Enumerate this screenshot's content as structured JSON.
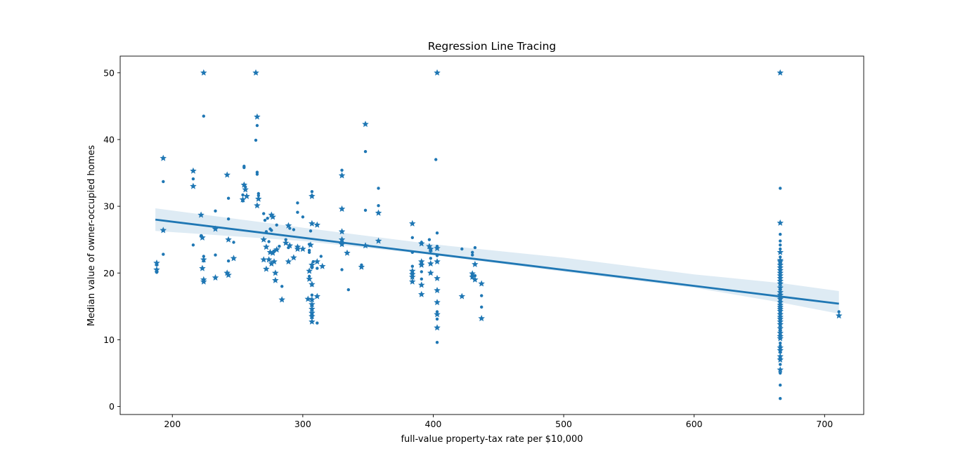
{
  "chart_data": {
    "type": "scatter",
    "title": "Regression Line Tracing",
    "xlabel": "full-value property-tax rate per $10,000",
    "ylabel": "Median value of owner-occupied homes",
    "xlim": [
      160,
      730
    ],
    "ylim": [
      -1.2,
      52.5
    ],
    "xticks": [
      200,
      300,
      400,
      500,
      600,
      700
    ],
    "yticks": [
      0,
      10,
      20,
      30,
      40,
      50
    ],
    "grid": false,
    "colors": {
      "points": "#1f77b4",
      "band": "#1f77b4",
      "line": "#1f77b4"
    },
    "regression": {
      "x": [
        187,
        711
      ],
      "y": [
        28.0,
        15.4
      ]
    },
    "confidence_band": {
      "x": [
        187,
        300,
        400,
        500,
        600,
        666,
        711
      ],
      "lower": [
        26.3,
        24.8,
        22.7,
        20.2,
        17.8,
        15.6,
        13.9
      ],
      "upper": [
        29.7,
        26.8,
        24.3,
        22.3,
        19.8,
        18.5,
        17.3
      ]
    },
    "series": [
      {
        "marker": "star",
        "points": [
          [
            188,
            21.5
          ],
          [
            188,
            20.5
          ],
          [
            193,
            37.2
          ],
          [
            193,
            26.4
          ],
          [
            216,
            35.3
          ],
          [
            216,
            33.0
          ],
          [
            222,
            28.7
          ],
          [
            223,
            25.3
          ],
          [
            223,
            20.7
          ],
          [
            224,
            22.0
          ],
          [
            224,
            19.0
          ],
          [
            224,
            18.7
          ],
          [
            224,
            50.0
          ],
          [
            233,
            26.6
          ],
          [
            233,
            19.3
          ],
          [
            242,
            34.7
          ],
          [
            242,
            20.0
          ],
          [
            243,
            25.0
          ],
          [
            243,
            19.7
          ],
          [
            247,
            22.2
          ],
          [
            254,
            31.0
          ],
          [
            255,
            33.2
          ],
          [
            256,
            32.5
          ],
          [
            257,
            31.5
          ],
          [
            264,
            50.0
          ],
          [
            265,
            43.4
          ],
          [
            265,
            30.1
          ],
          [
            266,
            31.1
          ],
          [
            270,
            25.0
          ],
          [
            270,
            22.0
          ],
          [
            272,
            23.9
          ],
          [
            272,
            20.6
          ],
          [
            274,
            22.0
          ],
          [
            275,
            23.1
          ],
          [
            276,
            28.7
          ],
          [
            276,
            21.4
          ],
          [
            277,
            28.4
          ],
          [
            277,
            23.0
          ],
          [
            278,
            21.7
          ],
          [
            279,
            18.9
          ],
          [
            279,
            20.0
          ],
          [
            280,
            23.5
          ],
          [
            284,
            16.0
          ],
          [
            287,
            24.5
          ],
          [
            289,
            27.1
          ],
          [
            289,
            21.7
          ],
          [
            290,
            24.1
          ],
          [
            293,
            22.3
          ],
          [
            296,
            23.9
          ],
          [
            296,
            23.6
          ],
          [
            300,
            23.6
          ],
          [
            304,
            16.1
          ],
          [
            305,
            20.3
          ],
          [
            305,
            19.1
          ],
          [
            306,
            24.2
          ],
          [
            307,
            21.2
          ],
          [
            307,
            15.3
          ],
          [
            307,
            14.6
          ],
          [
            307,
            14.0
          ],
          [
            307,
            13.5
          ],
          [
            307,
            12.7
          ],
          [
            307,
            18.3
          ],
          [
            307,
            16.0
          ],
          [
            307,
            27.4
          ],
          [
            307,
            31.5
          ],
          [
            311,
            27.2
          ],
          [
            311,
            16.5
          ],
          [
            311,
            21.7
          ],
          [
            315,
            21.0
          ],
          [
            330,
            34.6
          ],
          [
            330,
            29.6
          ],
          [
            330,
            26.2
          ],
          [
            330,
            25.0
          ],
          [
            330,
            24.3
          ],
          [
            334,
            23.0
          ],
          [
            345,
            20.9
          ],
          [
            348,
            42.3
          ],
          [
            348,
            24.1
          ],
          [
            358,
            24.8
          ],
          [
            358,
            29.0
          ],
          [
            384,
            27.4
          ],
          [
            384,
            20.3
          ],
          [
            384,
            19.8
          ],
          [
            384,
            19.4
          ],
          [
            384,
            18.7
          ],
          [
            391,
            24.4
          ],
          [
            391,
            21.7
          ],
          [
            391,
            21.2
          ],
          [
            391,
            18.2
          ],
          [
            391,
            16.8
          ],
          [
            397,
            24.0
          ],
          [
            398,
            23.6
          ],
          [
            398,
            21.4
          ],
          [
            398,
            20.0
          ],
          [
            403,
            50.0
          ],
          [
            403,
            23.7
          ],
          [
            403,
            21.7
          ],
          [
            403,
            19.2
          ],
          [
            403,
            17.4
          ],
          [
            403,
            15.6
          ],
          [
            403,
            13.8
          ],
          [
            403,
            11.8
          ],
          [
            422,
            16.5
          ],
          [
            430,
            19.9
          ],
          [
            430,
            19.4
          ],
          [
            432,
            21.3
          ],
          [
            432,
            19.0
          ],
          [
            437,
            18.4
          ],
          [
            437,
            13.2
          ],
          [
            666,
            50.0
          ],
          [
            666,
            27.5
          ],
          [
            666,
            23.1
          ],
          [
            666,
            21.9
          ],
          [
            666,
            21.7
          ],
          [
            666,
            21.2
          ],
          [
            666,
            20.8
          ],
          [
            666,
            20.4
          ],
          [
            666,
            20.0
          ],
          [
            666,
            19.6
          ],
          [
            666,
            19.2
          ],
          [
            666,
            18.8
          ],
          [
            666,
            18.4
          ],
          [
            666,
            17.8
          ],
          [
            666,
            17.1
          ],
          [
            666,
            16.7
          ],
          [
            666,
            16.4
          ],
          [
            666,
            16.1
          ],
          [
            666,
            15.6
          ],
          [
            666,
            15.2
          ],
          [
            666,
            14.9
          ],
          [
            666,
            14.6
          ],
          [
            666,
            14.3
          ],
          [
            666,
            13.8
          ],
          [
            666,
            13.4
          ],
          [
            666,
            13.1
          ],
          [
            666,
            12.7
          ],
          [
            666,
            12.3
          ],
          [
            666,
            11.7
          ],
          [
            666,
            11.0
          ],
          [
            666,
            10.5
          ],
          [
            666,
            10.2
          ],
          [
            666,
            8.8
          ],
          [
            666,
            8.4
          ],
          [
            666,
            7.5
          ],
          [
            666,
            7.0
          ],
          [
            666,
            5.5
          ],
          [
            711,
            13.6
          ]
        ]
      },
      {
        "marker": "dot",
        "points": [
          [
            188,
            21.2
          ],
          [
            188,
            20.1
          ],
          [
            193,
            33.7
          ],
          [
            193,
            22.8
          ],
          [
            216,
            34.1
          ],
          [
            216,
            24.2
          ],
          [
            222,
            25.6
          ],
          [
            224,
            43.5
          ],
          [
            224,
            22.5
          ],
          [
            224,
            21.8
          ],
          [
            233,
            29.3
          ],
          [
            233,
            22.7
          ],
          [
            243,
            31.2
          ],
          [
            243,
            28.1
          ],
          [
            243,
            21.8
          ],
          [
            247,
            24.6
          ],
          [
            254,
            31.7
          ],
          [
            254,
            30.8
          ],
          [
            255,
            36.0
          ],
          [
            255,
            35.8
          ],
          [
            256,
            32.9
          ],
          [
            264,
            39.9
          ],
          [
            265,
            42.1
          ],
          [
            265,
            35.1
          ],
          [
            265,
            34.8
          ],
          [
            266,
            31.9
          ],
          [
            266,
            31.6
          ],
          [
            270,
            28.9
          ],
          [
            271,
            27.9
          ],
          [
            272,
            26.2
          ],
          [
            273,
            28.2
          ],
          [
            274,
            24.7
          ],
          [
            275,
            26.6
          ],
          [
            276,
            26.4
          ],
          [
            278,
            23.3
          ],
          [
            280,
            27.2
          ],
          [
            282,
            24.0
          ],
          [
            284,
            18.0
          ],
          [
            287,
            25.0
          ],
          [
            289,
            23.8
          ],
          [
            290,
            26.7
          ],
          [
            293,
            26.5
          ],
          [
            296,
            29.1
          ],
          [
            296,
            30.5
          ],
          [
            300,
            28.4
          ],
          [
            305,
            24.3
          ],
          [
            305,
            23.4
          ],
          [
            305,
            23.1
          ],
          [
            305,
            19.5
          ],
          [
            306,
            26.3
          ],
          [
            307,
            32.2
          ],
          [
            307,
            31.6
          ],
          [
            307,
            13.3
          ],
          [
            307,
            15.1
          ],
          [
            307,
            16.7
          ],
          [
            307,
            18.2
          ],
          [
            307,
            20.8
          ],
          [
            308,
            21.7
          ],
          [
            311,
            12.5
          ],
          [
            311,
            20.7
          ],
          [
            314,
            22.5
          ],
          [
            330,
            35.4
          ],
          [
            330,
            24.8
          ],
          [
            330,
            20.5
          ],
          [
            335,
            17.5
          ],
          [
            345,
            21.2
          ],
          [
            348,
            38.2
          ],
          [
            348,
            29.4
          ],
          [
            358,
            32.7
          ],
          [
            358,
            30.1
          ],
          [
            384,
            25.3
          ],
          [
            384,
            23.1
          ],
          [
            384,
            21.0
          ],
          [
            391,
            24.6
          ],
          [
            391,
            20.2
          ],
          [
            391,
            19.1
          ],
          [
            397,
            25.0
          ],
          [
            398,
            23.3
          ],
          [
            398,
            22.2
          ],
          [
            402,
            37.0
          ],
          [
            403,
            26.0
          ],
          [
            403,
            24.0
          ],
          [
            403,
            22.6
          ],
          [
            403,
            14.2
          ],
          [
            403,
            13.1
          ],
          [
            403,
            9.6
          ],
          [
            422,
            23.6
          ],
          [
            430,
            23.1
          ],
          [
            430,
            22.7
          ],
          [
            432,
            23.8
          ],
          [
            432,
            19.6
          ],
          [
            437,
            16.6
          ],
          [
            437,
            14.9
          ],
          [
            666,
            32.7
          ],
          [
            666,
            25.8
          ],
          [
            666,
            24.8
          ],
          [
            666,
            24.2
          ],
          [
            666,
            23.6
          ],
          [
            666,
            22.4
          ],
          [
            666,
            20.2
          ],
          [
            666,
            19.0
          ],
          [
            666,
            17.5
          ],
          [
            666,
            15.9
          ],
          [
            666,
            15.4
          ],
          [
            666,
            13.0
          ],
          [
            666,
            12.1
          ],
          [
            666,
            11.3
          ],
          [
            666,
            10.9
          ],
          [
            666,
            9.5
          ],
          [
            666,
            9.1
          ],
          [
            666,
            8.1
          ],
          [
            666,
            7.3
          ],
          [
            666,
            6.3
          ],
          [
            666,
            5.0
          ],
          [
            666,
            3.2
          ],
          [
            666,
            1.2
          ],
          [
            711,
            14.2
          ]
        ]
      }
    ]
  }
}
